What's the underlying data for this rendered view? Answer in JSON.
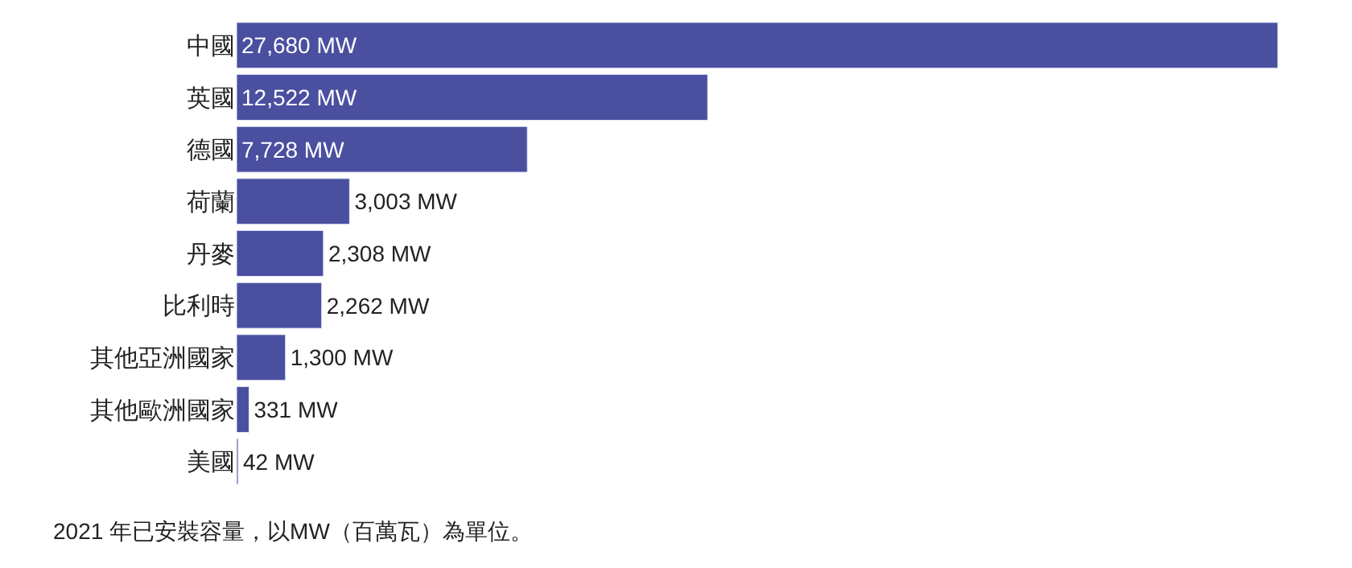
{
  "chart_data": {
    "type": "bar",
    "orientation": "horizontal",
    "categories": [
      "中國",
      "英國",
      "德國",
      "荷蘭",
      "丹麥",
      "比利時",
      "其他亞洲國家",
      "其他歐洲國家",
      "美國"
    ],
    "values": [
      27680,
      12522,
      7728,
      3003,
      2308,
      2262,
      1300,
      331,
      42
    ],
    "value_labels": [
      "27,680 MW",
      "12,522 MW",
      "7,728 MW",
      "3,003 MW",
      "2,308 MW",
      "2,262 MW",
      "1,300 MW",
      "331 MW",
      "42 MW"
    ],
    "color": "#4a4fa0",
    "annotations": [
      "2021 年已安裝容量，以MW（百萬瓦）為單位。"
    ]
  }
}
